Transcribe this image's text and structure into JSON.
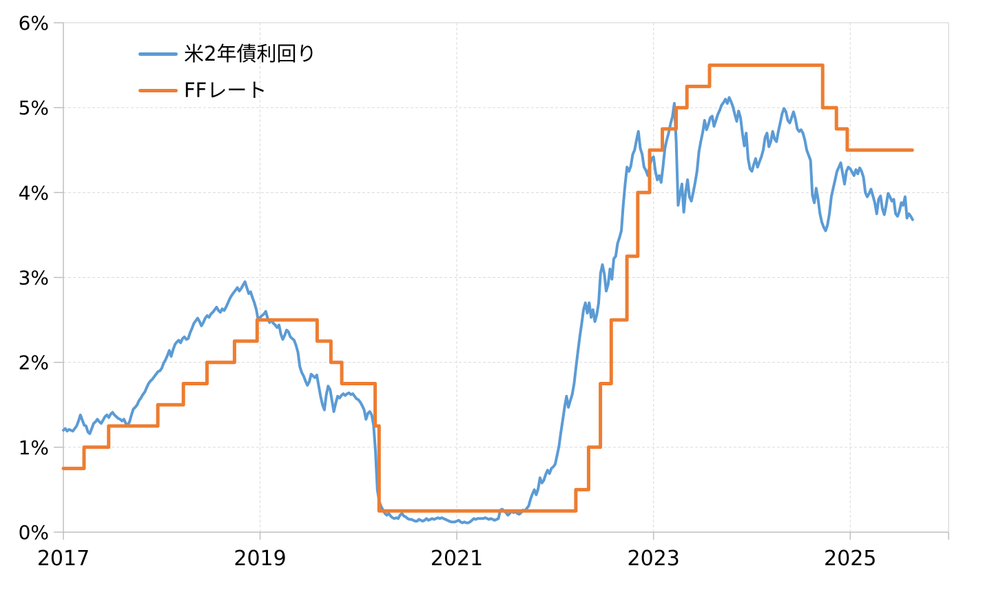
{
  "chart_data": {
    "type": "line",
    "legend_position": "top-left-inside",
    "grid": "dashed",
    "x_axis": {
      "range": [
        2017,
        2026
      ],
      "tick_values": [
        2017,
        2019,
        2021,
        2023,
        2025
      ],
      "tick_labels": [
        "2017",
        "2019",
        "2021",
        "2023",
        "2025"
      ],
      "gridline_values": [
        2019,
        2021,
        2023,
        2025
      ]
    },
    "y_axis": {
      "range": [
        0,
        6
      ],
      "tick_values": [
        0,
        1,
        2,
        3,
        4,
        5,
        6
      ],
      "tick_labels": [
        "0%",
        "1%",
        "2%",
        "3%",
        "4%",
        "5%",
        "6%"
      ],
      "gridline_values": [
        1,
        2,
        3,
        4,
        5
      ]
    },
    "series": [
      {
        "name": "米2年債利回り",
        "color": "#5B9BD5",
        "stroke_width": 4,
        "mode": "weekly",
        "x_start": 2017.0,
        "x_step": 0.019231,
        "values": [
          1.2,
          1.22,
          1.19,
          1.21,
          1.2,
          1.19,
          1.22,
          1.25,
          1.31,
          1.38,
          1.32,
          1.26,
          1.25,
          1.18,
          1.16,
          1.22,
          1.28,
          1.3,
          1.33,
          1.3,
          1.28,
          1.32,
          1.36,
          1.38,
          1.35,
          1.39,
          1.41,
          1.38,
          1.36,
          1.34,
          1.33,
          1.31,
          1.33,
          1.28,
          1.26,
          1.3,
          1.38,
          1.45,
          1.47,
          1.5,
          1.55,
          1.58,
          1.62,
          1.65,
          1.7,
          1.75,
          1.78,
          1.8,
          1.83,
          1.86,
          1.89,
          1.9,
          1.93,
          1.99,
          2.03,
          2.08,
          2.14,
          2.07,
          2.15,
          2.21,
          2.24,
          2.26,
          2.23,
          2.28,
          2.3,
          2.27,
          2.28,
          2.35,
          2.4,
          2.46,
          2.49,
          2.52,
          2.48,
          2.43,
          2.47,
          2.52,
          2.55,
          2.53,
          2.57,
          2.59,
          2.62,
          2.65,
          2.61,
          2.59,
          2.63,
          2.61,
          2.65,
          2.7,
          2.75,
          2.79,
          2.82,
          2.85,
          2.88,
          2.84,
          2.87,
          2.91,
          2.95,
          2.88,
          2.81,
          2.83,
          2.76,
          2.7,
          2.62,
          2.5,
          2.53,
          2.55,
          2.57,
          2.6,
          2.52,
          2.47,
          2.5,
          2.46,
          2.44,
          2.41,
          2.44,
          2.33,
          2.27,
          2.32,
          2.38,
          2.36,
          2.3,
          2.28,
          2.26,
          2.2,
          2.12,
          1.95,
          1.88,
          1.84,
          1.78,
          1.73,
          1.77,
          1.86,
          1.84,
          1.82,
          1.85,
          1.72,
          1.6,
          1.5,
          1.44,
          1.62,
          1.72,
          1.68,
          1.55,
          1.42,
          1.52,
          1.6,
          1.58,
          1.61,
          1.63,
          1.61,
          1.63,
          1.64,
          1.62,
          1.63,
          1.6,
          1.57,
          1.56,
          1.53,
          1.49,
          1.44,
          1.33,
          1.4,
          1.42,
          1.38,
          1.26,
          0.95,
          0.5,
          0.36,
          0.3,
          0.26,
          0.22,
          0.2,
          0.22,
          0.19,
          0.17,
          0.16,
          0.17,
          0.16,
          0.2,
          0.22,
          0.19,
          0.18,
          0.16,
          0.15,
          0.15,
          0.14,
          0.13,
          0.13,
          0.15,
          0.14,
          0.13,
          0.14,
          0.16,
          0.14,
          0.15,
          0.16,
          0.15,
          0.16,
          0.17,
          0.16,
          0.17,
          0.16,
          0.15,
          0.14,
          0.13,
          0.12,
          0.12,
          0.12,
          0.13,
          0.14,
          0.12,
          0.11,
          0.12,
          0.11,
          0.11,
          0.12,
          0.14,
          0.16,
          0.15,
          0.16,
          0.16,
          0.16,
          0.16,
          0.17,
          0.16,
          0.15,
          0.16,
          0.15,
          0.14,
          0.15,
          0.16,
          0.26,
          0.27,
          0.25,
          0.23,
          0.2,
          0.22,
          0.25,
          0.23,
          0.24,
          0.22,
          0.21,
          0.23,
          0.26,
          0.25,
          0.28,
          0.31,
          0.39,
          0.45,
          0.5,
          0.44,
          0.51,
          0.64,
          0.58,
          0.61,
          0.68,
          0.73,
          0.69,
          0.75,
          0.77,
          0.8,
          0.9,
          1.01,
          1.17,
          1.32,
          1.47,
          1.6,
          1.47,
          1.55,
          1.62,
          1.75,
          1.94,
          2.12,
          2.3,
          2.45,
          2.62,
          2.7,
          2.58,
          2.7,
          2.53,
          2.62,
          2.48,
          2.56,
          2.7,
          3.05,
          3.15,
          3.04,
          2.84,
          2.92,
          3.1,
          2.98,
          3.22,
          3.25,
          3.4,
          3.47,
          3.55,
          3.85,
          4.1,
          4.3,
          4.25,
          4.31,
          4.45,
          4.5,
          4.62,
          4.72,
          4.52,
          4.45,
          4.3,
          4.26,
          4.2,
          4.32,
          4.4,
          4.42,
          4.25,
          4.15,
          4.2,
          4.12,
          4.3,
          4.52,
          4.62,
          4.7,
          4.81,
          4.89,
          5.05,
          4.6,
          3.85,
          3.98,
          4.1,
          3.77,
          4.01,
          4.15,
          3.95,
          3.9,
          4.0,
          4.12,
          4.25,
          4.48,
          4.6,
          4.71,
          4.85,
          4.74,
          4.8,
          4.88,
          4.9,
          4.78,
          4.85,
          4.92,
          4.97,
          5.03,
          5.06,
          5.1,
          5.05,
          5.12,
          5.07,
          5.01,
          4.92,
          4.84,
          4.96,
          4.88,
          4.7,
          4.55,
          4.7,
          4.4,
          4.28,
          4.25,
          4.33,
          4.4,
          4.3,
          4.36,
          4.42,
          4.5,
          4.65,
          4.7,
          4.54,
          4.6,
          4.72,
          4.63,
          4.6,
          4.72,
          4.82,
          4.93,
          4.99,
          4.95,
          4.85,
          4.82,
          4.88,
          4.95,
          4.87,
          4.75,
          4.72,
          4.74,
          4.7,
          4.62,
          4.5,
          4.44,
          4.38,
          3.97,
          3.88,
          4.05,
          3.92,
          3.75,
          3.65,
          3.59,
          3.55,
          3.62,
          3.75,
          3.95,
          4.05,
          4.15,
          4.25,
          4.3,
          4.35,
          4.22,
          4.1,
          4.25,
          4.3,
          4.28,
          4.24,
          4.2,
          4.27,
          4.22,
          4.29,
          4.25,
          4.18,
          4.0,
          3.95,
          3.99,
          4.04,
          3.96,
          3.88,
          3.75,
          3.92,
          3.96,
          3.81,
          3.74,
          3.85,
          3.99,
          3.95,
          3.9,
          3.92,
          3.75,
          3.72,
          3.78,
          3.88,
          3.85,
          3.95,
          3.7,
          3.75,
          3.72,
          3.68
        ]
      },
      {
        "name": "FFレート",
        "color": "#ED7D31",
        "stroke_width": 5,
        "mode": "points",
        "points": [
          [
            2017.0,
            0.75
          ],
          [
            2017.21,
            0.75
          ],
          [
            2017.21,
            1.0
          ],
          [
            2017.46,
            1.0
          ],
          [
            2017.46,
            1.25
          ],
          [
            2017.96,
            1.25
          ],
          [
            2017.96,
            1.5
          ],
          [
            2018.22,
            1.5
          ],
          [
            2018.22,
            1.75
          ],
          [
            2018.46,
            1.75
          ],
          [
            2018.46,
            2.0
          ],
          [
            2018.74,
            2.0
          ],
          [
            2018.74,
            2.25
          ],
          [
            2018.97,
            2.25
          ],
          [
            2018.97,
            2.5
          ],
          [
            2019.58,
            2.5
          ],
          [
            2019.58,
            2.25
          ],
          [
            2019.72,
            2.25
          ],
          [
            2019.72,
            2.0
          ],
          [
            2019.83,
            2.0
          ],
          [
            2019.83,
            1.75
          ],
          [
            2020.17,
            1.75
          ],
          [
            2020.17,
            1.25
          ],
          [
            2020.21,
            1.25
          ],
          [
            2020.21,
            0.25
          ],
          [
            2022.21,
            0.25
          ],
          [
            2022.21,
            0.5
          ],
          [
            2022.34,
            0.5
          ],
          [
            2022.34,
            1.0
          ],
          [
            2022.46,
            1.0
          ],
          [
            2022.46,
            1.75
          ],
          [
            2022.57,
            1.75
          ],
          [
            2022.57,
            2.5
          ],
          [
            2022.73,
            2.5
          ],
          [
            2022.73,
            3.25
          ],
          [
            2022.84,
            3.25
          ],
          [
            2022.84,
            4.0
          ],
          [
            2022.96,
            4.0
          ],
          [
            2022.96,
            4.5
          ],
          [
            2023.09,
            4.5
          ],
          [
            2023.09,
            4.75
          ],
          [
            2023.23,
            4.75
          ],
          [
            2023.23,
            5.0
          ],
          [
            2023.34,
            5.0
          ],
          [
            2023.34,
            5.25
          ],
          [
            2023.57,
            5.25
          ],
          [
            2023.57,
            5.5
          ],
          [
            2024.72,
            5.5
          ],
          [
            2024.72,
            5.0
          ],
          [
            2024.86,
            5.0
          ],
          [
            2024.86,
            4.75
          ],
          [
            2024.97,
            4.75
          ],
          [
            2024.97,
            4.5
          ],
          [
            2025.63,
            4.5
          ]
        ]
      }
    ]
  },
  "style": {
    "grid_color": "#D9D9D9",
    "axis_color": "#BFBFBF",
    "text_color": "#000000",
    "background": "#FFFFFF"
  }
}
